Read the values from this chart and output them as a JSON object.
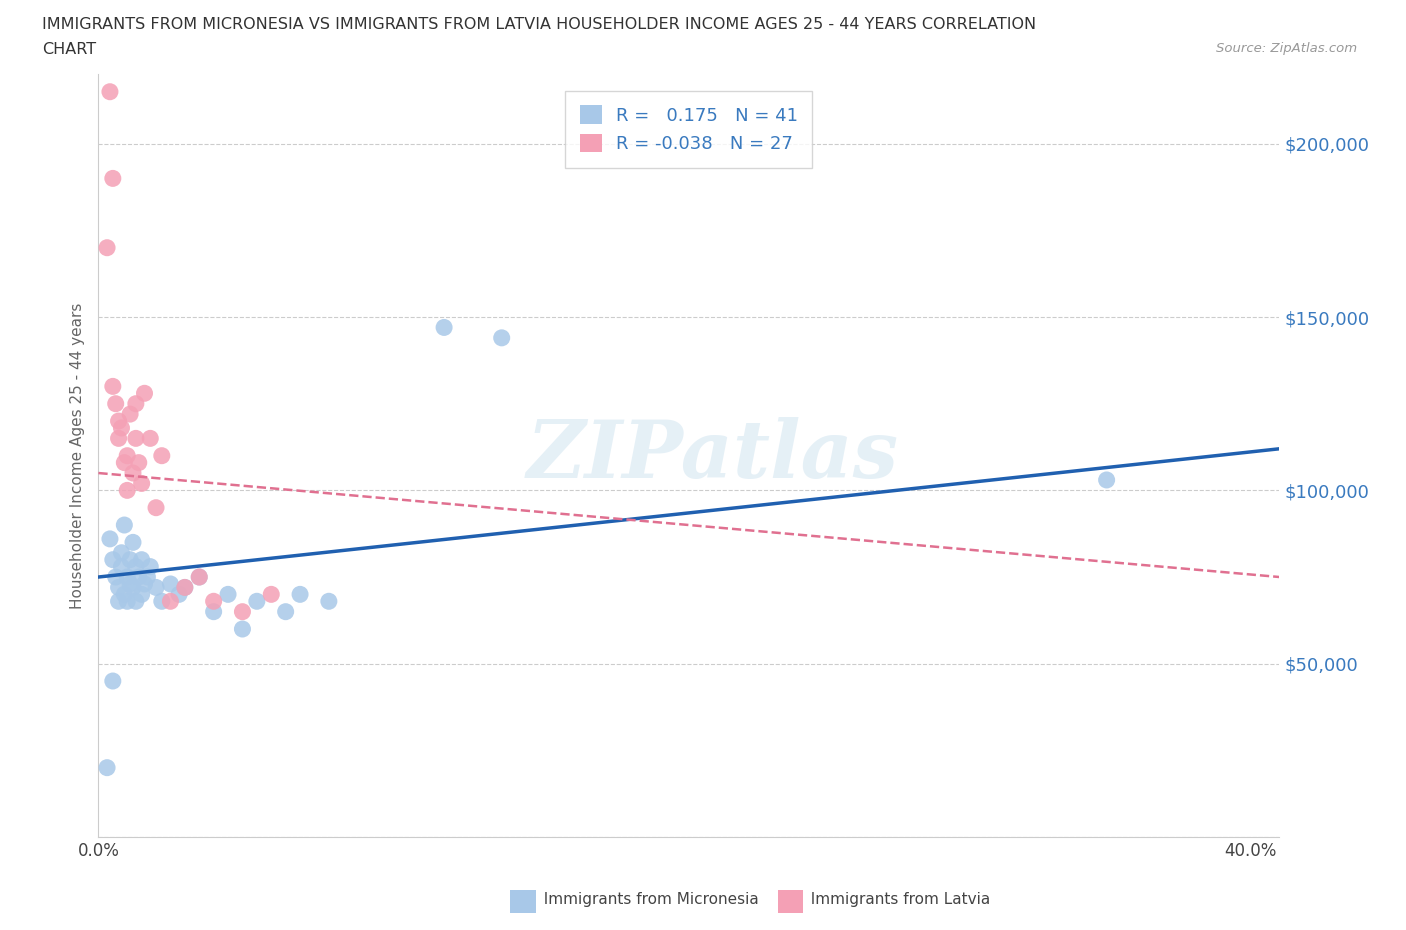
{
  "title_line1": "IMMIGRANTS FROM MICRONESIA VS IMMIGRANTS FROM LATVIA HOUSEHOLDER INCOME AGES 25 - 44 YEARS CORRELATION",
  "title_line2": "CHART",
  "source": "Source: ZipAtlas.com",
  "ylabel": "Householder Income Ages 25 - 44 years",
  "r_micronesia": 0.175,
  "n_micronesia": 41,
  "r_latvia": -0.038,
  "n_latvia": 27,
  "micronesia_color": "#a8c8e8",
  "latvia_color": "#f4a0b5",
  "micronesia_line_color": "#2060b0",
  "latvia_line_color": "#e07090",
  "background_color": "#ffffff",
  "watermark": "ZIPatlas",
  "xlim": [
    0,
    0.41
  ],
  "ylim": [
    0,
    220000
  ],
  "yticks": [
    0,
    50000,
    100000,
    150000,
    200000
  ],
  "ytick_labels": [
    "",
    "$50,000",
    "$100,000",
    "$150,000",
    "$200,000"
  ],
  "xticks": [
    0.0,
    0.1,
    0.2,
    0.3,
    0.4
  ],
  "xtick_labels": [
    "0.0%",
    "",
    "",
    "",
    "40.0%"
  ],
  "mic_line_x0": 0.0,
  "mic_line_y0": 75000,
  "mic_line_x1": 0.41,
  "mic_line_y1": 112000,
  "lat_line_x0": 0.0,
  "lat_line_y0": 105000,
  "lat_line_x1": 0.41,
  "lat_line_y1": 75000,
  "micronesia_x": [
    0.003,
    0.004,
    0.005,
    0.006,
    0.007,
    0.007,
    0.008,
    0.008,
    0.009,
    0.009,
    0.01,
    0.01,
    0.011,
    0.011,
    0.012,
    0.012,
    0.013,
    0.013,
    0.014,
    0.015,
    0.015,
    0.016,
    0.017,
    0.018,
    0.02,
    0.022,
    0.025,
    0.028,
    0.03,
    0.035,
    0.04,
    0.045,
    0.05,
    0.055,
    0.065,
    0.07,
    0.08,
    0.12,
    0.14,
    0.35,
    0.005
  ],
  "micronesia_y": [
    20000,
    86000,
    80000,
    75000,
    72000,
    68000,
    82000,
    78000,
    70000,
    90000,
    75000,
    68000,
    80000,
    73000,
    85000,
    72000,
    78000,
    68000,
    75000,
    80000,
    70000,
    73000,
    75000,
    78000,
    72000,
    68000,
    73000,
    70000,
    72000,
    75000,
    65000,
    70000,
    60000,
    68000,
    65000,
    70000,
    68000,
    147000,
    144000,
    103000,
    45000
  ],
  "latvia_x": [
    0.004,
    0.005,
    0.005,
    0.006,
    0.007,
    0.007,
    0.008,
    0.009,
    0.01,
    0.01,
    0.011,
    0.012,
    0.013,
    0.013,
    0.014,
    0.015,
    0.016,
    0.018,
    0.02,
    0.022,
    0.025,
    0.03,
    0.035,
    0.04,
    0.05,
    0.06,
    0.003
  ],
  "latvia_y": [
    215000,
    190000,
    130000,
    125000,
    120000,
    115000,
    118000,
    108000,
    110000,
    100000,
    122000,
    105000,
    115000,
    125000,
    108000,
    102000,
    128000,
    115000,
    95000,
    110000,
    68000,
    72000,
    75000,
    68000,
    65000,
    70000,
    170000
  ]
}
